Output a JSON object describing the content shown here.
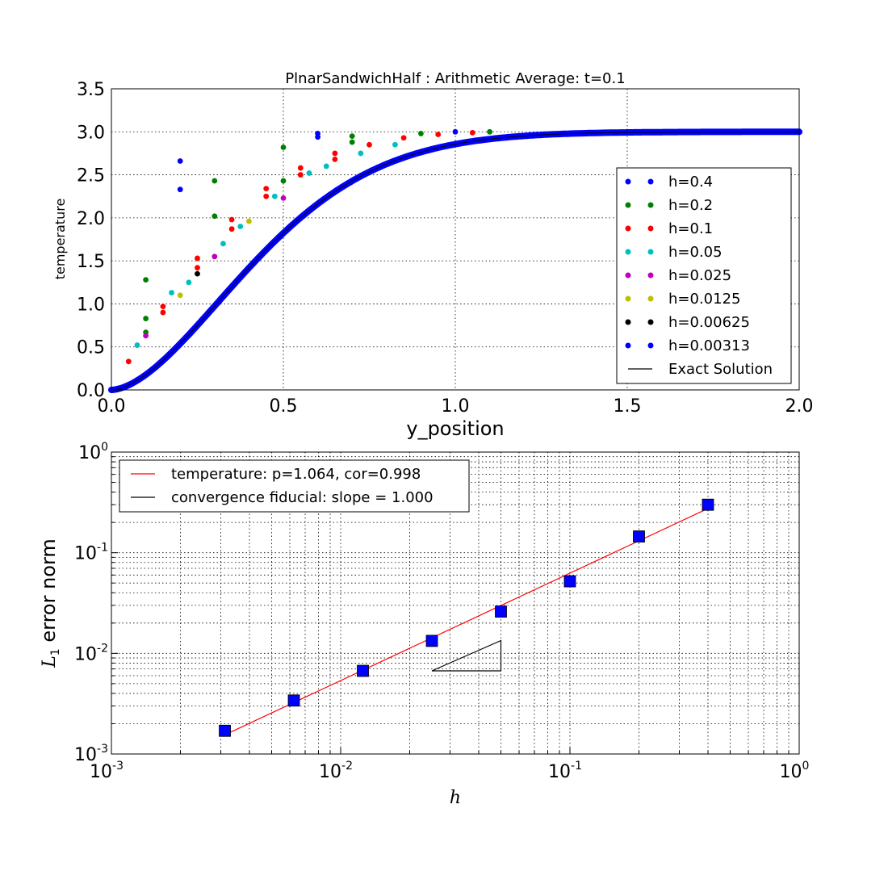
{
  "chart_data": [
    {
      "type": "scatter",
      "title": "PlnarSandwichHalf : Arithmetic Average: t=0.1",
      "xlabel": "y_position",
      "ylabel": "temperature",
      "xlim": [
        0,
        2.0
      ],
      "ylim": [
        0,
        3.5
      ],
      "x_ticks": [
        "0.0",
        "0.5",
        "1.0",
        "1.5",
        "2.0"
      ],
      "y_ticks": [
        "0.0",
        "0.5",
        "1.0",
        "1.5",
        "2.0",
        "2.5",
        "3.0",
        "3.5"
      ],
      "grid": true,
      "legend_position": "lower-right",
      "series": [
        {
          "name": "h=0.4",
          "color": "#0000ff",
          "x": [
            0.2,
            0.2,
            0.6,
            0.6,
            1.0
          ],
          "y": [
            2.66,
            2.33,
            2.98,
            2.94,
            3.0
          ]
        },
        {
          "name": "h=0.2",
          "color": "#008000",
          "x": [
            0.1,
            0.1,
            0.1,
            0.3,
            0.3,
            0.5,
            0.5,
            0.7,
            0.7,
            0.9,
            1.1
          ],
          "y": [
            1.28,
            0.83,
            0.67,
            2.43,
            2.02,
            2.82,
            2.43,
            2.95,
            2.88,
            2.98,
            3.0
          ]
        },
        {
          "name": "h=0.1",
          "color": "#ff0000",
          "x": [
            0.05,
            0.15,
            0.15,
            0.25,
            0.25,
            0.35,
            0.35,
            0.45,
            0.45,
            0.55,
            0.55,
            0.65,
            0.65,
            0.75,
            0.85,
            0.95,
            1.05
          ],
          "y": [
            0.33,
            0.97,
            0.9,
            1.53,
            1.42,
            1.98,
            1.87,
            2.34,
            2.25,
            2.58,
            2.5,
            2.75,
            2.68,
            2.85,
            2.93,
            2.97,
            2.99
          ]
        },
        {
          "name": "h=0.05",
          "color": "#00bfbf",
          "x": [
            0.075,
            0.175,
            0.225,
            0.325,
            0.375,
            0.475,
            0.575,
            0.625,
            0.725,
            0.825
          ],
          "y": [
            0.52,
            1.13,
            1.25,
            1.7,
            1.9,
            2.25,
            2.52,
            2.6,
            2.75,
            2.85
          ]
        },
        {
          "name": "h=0.025",
          "color": "#bf00bf",
          "x": [
            0.1,
            0.3,
            0.5
          ],
          "y": [
            0.63,
            1.55,
            2.23
          ]
        },
        {
          "name": "h=0.0125",
          "color": "#bfbf00",
          "x": [
            0.2,
            0.4
          ],
          "y": [
            1.1,
            1.96
          ]
        },
        {
          "name": "h=0.00625",
          "color": "#000000",
          "x": [
            0.25
          ],
          "y": [
            1.35
          ]
        },
        {
          "name": "h=0.00313",
          "color": "#0000ff",
          "x": [],
          "y": []
        },
        {
          "name": "Exact Solution",
          "color": "#000000",
          "x": [],
          "y": []
        }
      ]
    },
    {
      "type": "scatter",
      "xlabel": "h",
      "ylabel": "error norm",
      "x_scale": "log",
      "y_scale": "log",
      "xlim": [
        0.001,
        1.0
      ],
      "ylim": [
        0.001,
        1.0
      ],
      "x_ticks": [
        {
          "base": "10",
          "exp": "-3"
        },
        {
          "base": "10",
          "exp": "-2"
        },
        {
          "base": "10",
          "exp": "-1"
        },
        {
          "base": "10",
          "exp": "0"
        }
      ],
      "y_ticks": [
        {
          "base": "10",
          "exp": "-3"
        },
        {
          "base": "10",
          "exp": "-2"
        },
        {
          "base": "10",
          "exp": "-1"
        },
        {
          "base": "10",
          "exp": "0"
        }
      ],
      "grid": true,
      "legend_position": "top-left",
      "series": [
        {
          "name": "",
          "color": "#0000ff",
          "marker": "square",
          "x": [
            0.4,
            0.2,
            0.1,
            0.05,
            0.025,
            0.0125,
            0.00625,
            0.003125
          ],
          "y": [
            0.3,
            0.145,
            0.052,
            0.026,
            0.0133,
            0.0067,
            0.0034,
            0.0017
          ]
        },
        {
          "name": "temperature: p=1.064, cor=0.998",
          "color": "#ff0000",
          "x": [
            0.003125,
            0.4
          ],
          "y": [
            0.00155,
            0.275
          ]
        },
        {
          "name": "convergence fiducial: slope = 1.000",
          "color": "#000000",
          "x": [
            0.025,
            0.05,
            0.05,
            0.025
          ],
          "y": [
            0.0067,
            0.0067,
            0.0134,
            0.0067
          ]
        }
      ]
    }
  ],
  "labels": {
    "top_title": "PlnarSandwichHalf : Arithmetic Average: t=0.1",
    "top_xlabel": "y_position",
    "top_ylabel": "temperature",
    "bottom_xlabel": "h",
    "bottom_ylabel_symbol": "L",
    "bottom_ylabel_sub": "1",
    "bottom_ylabel_text": " error norm"
  }
}
